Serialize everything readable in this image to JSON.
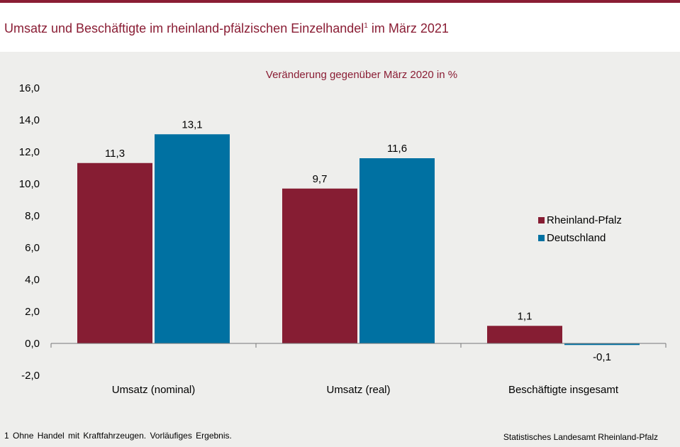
{
  "title": {
    "main": "Umsatz und Beschäftigte im rheinland-pfälzischen Einzelhandel",
    "footnote_mark": "1",
    "suffix": " im März 2021"
  },
  "footnote": "1 Ohne Handel mit Kraftfahrzeugen. Vorläufiges Ergebnis.",
  "source": "Statistisches Landesamt Rheinland-Pfalz",
  "colors": {
    "brand": "#8a1d34",
    "Rheinland-Pfalz": "#861d33",
    "Deutschland": "#0071a2",
    "panel": "#eeeeec"
  },
  "chart_data": {
    "type": "bar",
    "subtitle": "Veränderung gegenüber März 2020 in %",
    "categories": [
      "Umsatz (nominal)",
      "Umsatz (real)",
      "Beschäftigte insgesamt"
    ],
    "series": [
      {
        "name": "Rheinland-Pfalz",
        "values": [
          11.3,
          9.7,
          1.1
        ],
        "labels": [
          "11,3",
          "9,7",
          "1,1"
        ]
      },
      {
        "name": "Deutschland",
        "values": [
          13.1,
          11.6,
          -0.1
        ],
        "labels": [
          "13,1",
          "11,6",
          "-0,1"
        ]
      }
    ],
    "yticks": [
      "16,0",
      "14,0",
      "12,0",
      "10,0",
      "8,0",
      "6,0",
      "4,0",
      "2,0",
      "0,0",
      "-2,0"
    ],
    "ylim": [
      -2,
      16
    ],
    "grid": false,
    "legend_position": "right"
  }
}
